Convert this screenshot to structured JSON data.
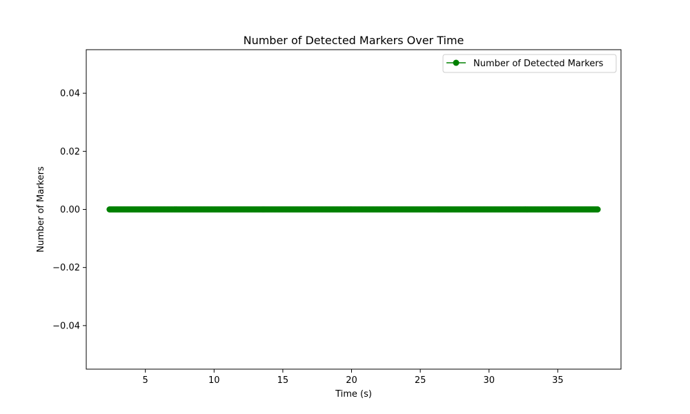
{
  "chart_data": {
    "type": "line",
    "title": "Number of Detected Markers Over Time",
    "xlabel": "Time (s)",
    "ylabel": "Number of Markers",
    "xlim": [
      0.7,
      39.6
    ],
    "ylim": [
      -0.055,
      0.055
    ],
    "x_ticks": [
      5,
      10,
      15,
      20,
      25,
      30,
      35
    ],
    "x_tick_labels": [
      "5",
      "10",
      "15",
      "20",
      "25",
      "30",
      "35"
    ],
    "y_ticks": [
      0.04,
      0.02,
      0.0,
      -0.02,
      -0.04
    ],
    "y_tick_labels": [
      "0.04",
      "0.02",
      "0.00",
      "−0.02",
      "−0.04"
    ],
    "grid": false,
    "legend": {
      "position": "top-right"
    },
    "series": [
      {
        "name": "Number of Detected Markers",
        "color": "#008000",
        "marker": "circle",
        "x_start": 2.4,
        "x_end": 37.9,
        "x_step": 0.1,
        "y": 0
      }
    ]
  }
}
